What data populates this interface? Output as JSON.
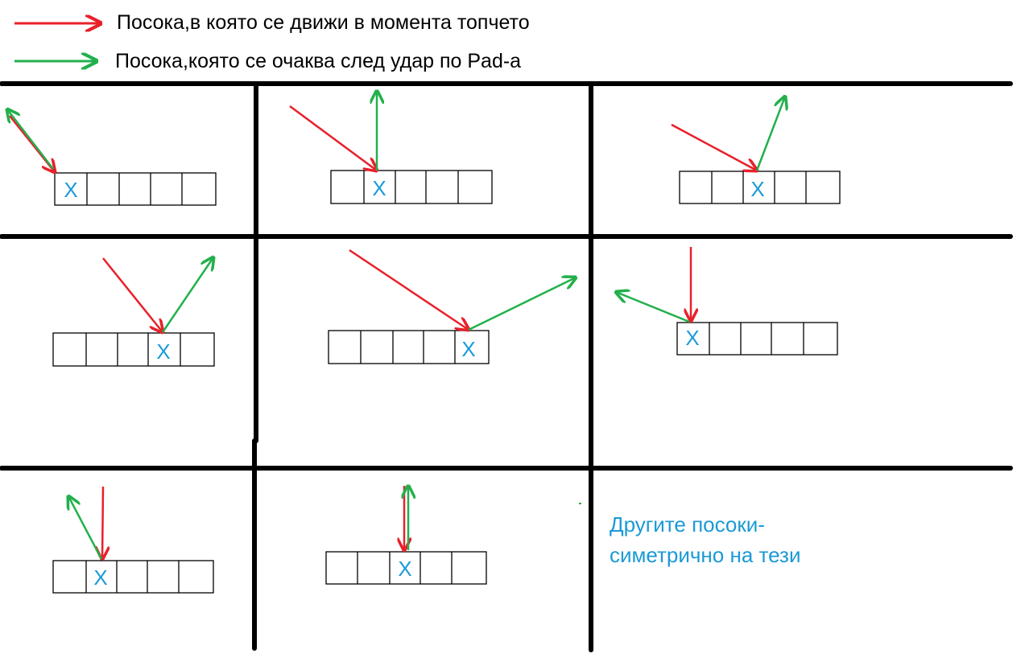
{
  "colors": {
    "incoming": "#e8202a",
    "reflected": "#22b04c",
    "grid": "#000000",
    "marker": "#1a9ad6"
  },
  "legend": {
    "incoming_label": "Посока,в която се движи в момента топчето",
    "reflected_label": "Посока,която се очаква след удар по Pad-a"
  },
  "paddle": {
    "segment_count": 5,
    "marker": "X"
  },
  "cases": [
    {
      "hit_segment": 1
    },
    {
      "hit_segment": 2
    },
    {
      "hit_segment": 3
    },
    {
      "hit_segment": 4
    },
    {
      "hit_segment": 5
    },
    {
      "hit_segment": 1
    },
    {
      "hit_segment": 2
    },
    {
      "hit_segment": 3
    }
  ],
  "note": {
    "line1": "Другите посоки-",
    "line2": "симетрично на тези"
  }
}
